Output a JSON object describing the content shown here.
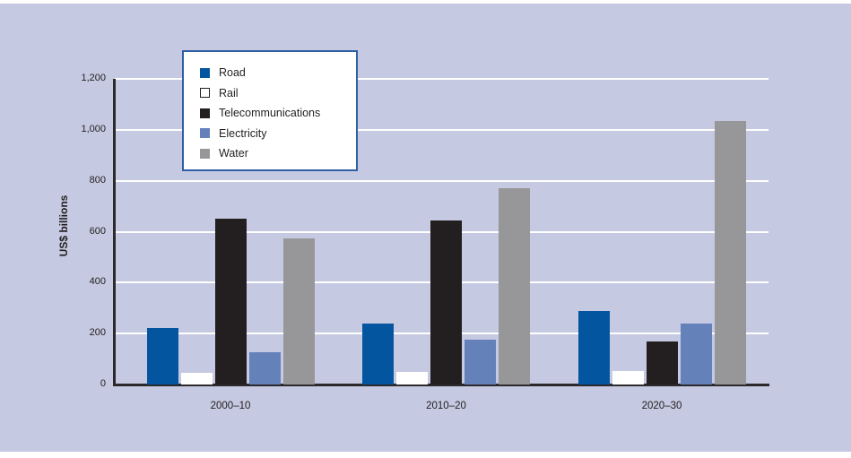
{
  "panel": {
    "background_color": "#c5c9e1"
  },
  "chart_data": {
    "type": "bar",
    "title": "",
    "ylabel": "US$ billions",
    "xlabel": "",
    "categories": [
      "2000–10",
      "2010–20",
      "2020–30"
    ],
    "series": [
      {
        "name": "Road",
        "color": "#0455a0",
        "values": [
          220,
          240,
          288
        ]
      },
      {
        "name": "Rail",
        "color": "#ffffff",
        "swatch_border": "#231f20",
        "values": [
          45,
          48,
          52
        ]
      },
      {
        "name": "Telecommunications",
        "color": "#231f20",
        "values": [
          650,
          643,
          168
        ]
      },
      {
        "name": "Electricity",
        "color": "#6581ba",
        "values": [
          125,
          177,
          238
        ]
      },
      {
        "name": "Water",
        "color": "#97979a",
        "values": [
          575,
          770,
          1035
        ]
      }
    ],
    "ylim": [
      0,
      1200
    ],
    "yticks": [
      0,
      200,
      400,
      600,
      800,
      1000,
      1200
    ],
    "ytick_labels": [
      "0",
      "200",
      "400",
      "600",
      "800",
      "1,000",
      "1,200"
    ],
    "grid": true,
    "gridline_color": "#ffffff",
    "axis_color": "#2b292c",
    "legend_position": "top-left-inside",
    "legend_border_color": "#2e5fa5",
    "legend_background": "#ffffff"
  }
}
